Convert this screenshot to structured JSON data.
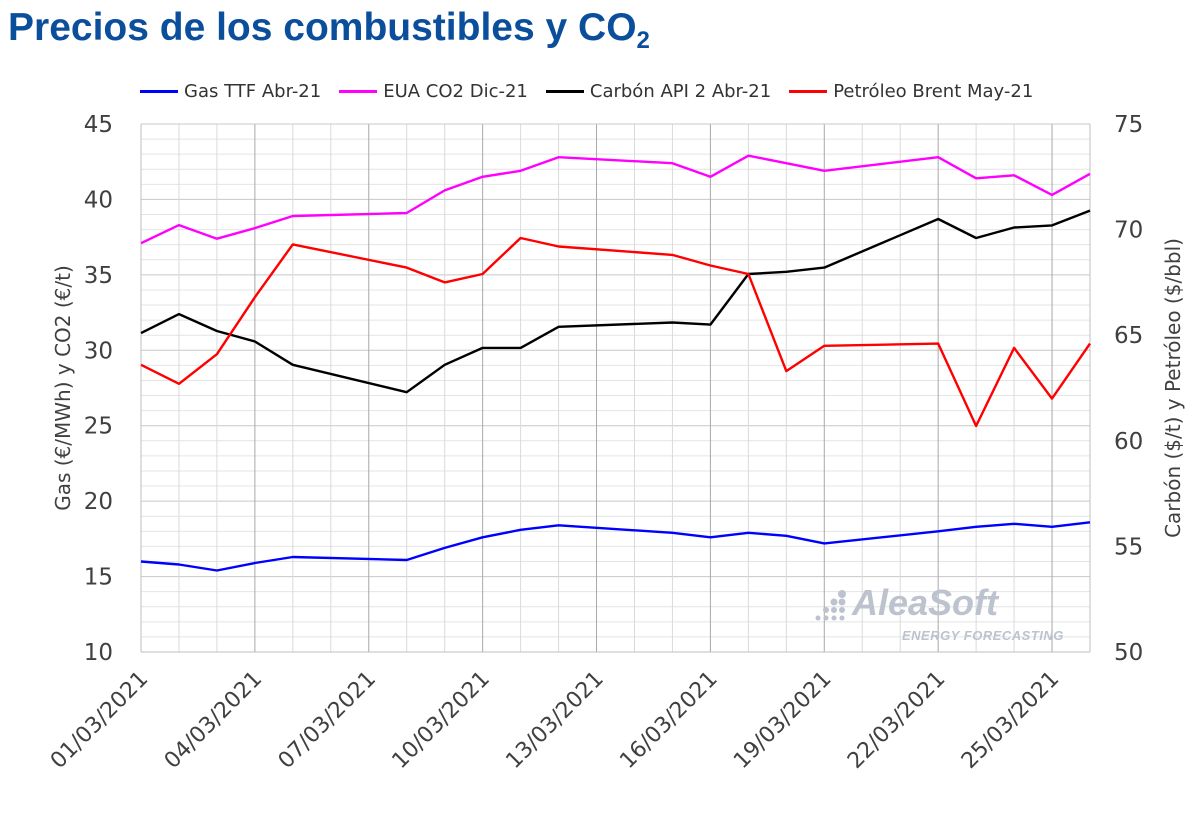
{
  "title": {
    "main": "Precios de los combustibles y CO",
    "sub": "2"
  },
  "brand": {
    "name": "AleaSoft",
    "tagline": "ENERGY FORECASTING"
  },
  "chart_data": {
    "type": "line",
    "x": [
      "01/03/2021",
      "02/03/2021",
      "03/03/2021",
      "04/03/2021",
      "05/03/2021",
      "08/03/2021",
      "09/03/2021",
      "10/03/2021",
      "11/03/2021",
      "12/03/2021",
      "15/03/2021",
      "16/03/2021",
      "17/03/2021",
      "18/03/2021",
      "19/03/2021",
      "22/03/2021",
      "23/03/2021",
      "24/03/2021",
      "25/03/2021",
      "26/03/2021"
    ],
    "xticks": [
      "01/03/2021",
      "04/03/2021",
      "07/03/2021",
      "10/03/2021",
      "13/03/2021",
      "16/03/2021",
      "19/03/2021",
      "22/03/2021",
      "25/03/2021"
    ],
    "ylabel_left": "Gas (€/MWh) y CO2 (€/t)",
    "ylabel_right": "Carbón ($/t) y Petróleo ($/bbl)",
    "ylim_left": [
      10,
      45
    ],
    "yticks_left": [
      10,
      15,
      20,
      25,
      30,
      35,
      40,
      45
    ],
    "ylim_right": [
      50,
      75
    ],
    "yticks_right": [
      50,
      55,
      60,
      65,
      70,
      75
    ],
    "legend_position": "top",
    "grid": true,
    "series": [
      {
        "name": "Gas TTF Abr-21",
        "axis": "left",
        "color": "#0000ff",
        "values": [
          16.0,
          15.8,
          15.4,
          15.9,
          16.3,
          16.1,
          16.9,
          17.6,
          18.1,
          18.4,
          17.9,
          17.6,
          17.9,
          17.7,
          17.2,
          18.0,
          18.3,
          18.5,
          18.3,
          18.6
        ]
      },
      {
        "name": "EUA CO2 Dic-21",
        "axis": "left",
        "color": "#ff00ff",
        "values": [
          37.1,
          38.3,
          37.4,
          38.1,
          38.9,
          39.1,
          40.6,
          41.5,
          41.9,
          42.8,
          42.4,
          41.5,
          42.9,
          42.4,
          41.9,
          42.8,
          41.4,
          41.6,
          40.3,
          41.7
        ]
      },
      {
        "name": "Carbón API 2 Abr-21",
        "axis": "right",
        "color": "#000000",
        "values": [
          65.1,
          66.0,
          65.2,
          64.7,
          63.6,
          62.3,
          63.6,
          64.4,
          64.4,
          65.4,
          65.6,
          65.5,
          67.9,
          68.0,
          68.2,
          70.5,
          69.6,
          70.1,
          70.2,
          70.9
        ]
      },
      {
        "name": "Petróleo Brent May-21",
        "axis": "right",
        "color": "#ff0000",
        "values": [
          63.6,
          62.7,
          64.1,
          66.8,
          69.3,
          68.2,
          67.5,
          67.9,
          69.6,
          69.2,
          68.8,
          68.3,
          67.9,
          63.3,
          64.5,
          64.6,
          60.7,
          64.4,
          62.0,
          64.6
        ]
      }
    ]
  }
}
